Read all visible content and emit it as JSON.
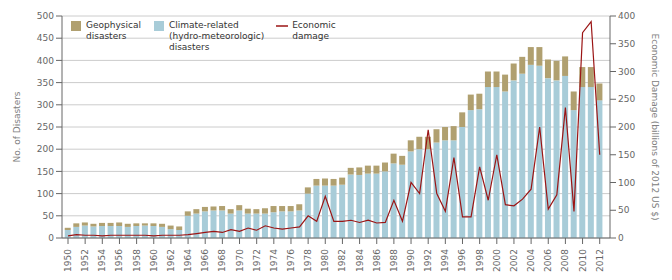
{
  "chart_data": {
    "type": "bar",
    "x": [
      1950,
      1951,
      1952,
      1953,
      1954,
      1955,
      1956,
      1957,
      1958,
      1959,
      1960,
      1961,
      1962,
      1963,
      1964,
      1965,
      1966,
      1967,
      1968,
      1969,
      1970,
      1971,
      1972,
      1973,
      1974,
      1975,
      1976,
      1977,
      1978,
      1979,
      1980,
      1981,
      1982,
      1983,
      1984,
      1985,
      1986,
      1987,
      1988,
      1989,
      1990,
      1991,
      1992,
      1993,
      1994,
      1995,
      1996,
      1997,
      1998,
      1999,
      2000,
      2001,
      2002,
      2003,
      2004,
      2005,
      2006,
      2007,
      2008,
      2009,
      2010,
      2011,
      2012
    ],
    "xlim": [
      1949.3,
      2013.2
    ],
    "xticks": [
      1950,
      1952,
      1954,
      1956,
      1958,
      1960,
      1962,
      1964,
      1966,
      1968,
      1970,
      1972,
      1974,
      1976,
      1978,
      1980,
      1982,
      1984,
      1986,
      1988,
      1990,
      1992,
      1994,
      1996,
      1998,
      2000,
      2002,
      2004,
      2006,
      2008,
      2010,
      2012
    ],
    "ylabel": "No. of Disasters",
    "y2label": "Economic Damage (billions of 2012 US $)",
    "ylim": [
      0,
      500
    ],
    "yticks": [
      0,
      50,
      100,
      150,
      200,
      250,
      300,
      350,
      400,
      450,
      500
    ],
    "y2lim": [
      0,
      400
    ],
    "y2ticks": [
      0,
      50,
      100,
      150,
      200,
      250,
      300,
      350,
      400
    ],
    "stacked": true,
    "grid": true,
    "legend": "upper left",
    "series": [
      {
        "name": "Geophysical\ndisasters",
        "type": "bar",
        "color": "#b0a070",
        "values": [
          5,
          8,
          7,
          6,
          7,
          7,
          8,
          7,
          6,
          5,
          6,
          7,
          8,
          8,
          10,
          10,
          10,
          9,
          10,
          10,
          12,
          11,
          10,
          12,
          14,
          12,
          12,
          14,
          14,
          15,
          16,
          15,
          16,
          15,
          17,
          18,
          18,
          20,
          22,
          20,
          25,
          28,
          28,
          30,
          30,
          32,
          33,
          35,
          35,
          35,
          35,
          38,
          38,
          38,
          40,
          42,
          42,
          44,
          44,
          42,
          45,
          45,
          38
        ]
      },
      {
        "name": "Climate-related\n(hydro-meteorologic)\ndisasters",
        "type": "bar",
        "color": "#a8ccd8",
        "values": [
          18,
          25,
          28,
          26,
          27,
          27,
          27,
          25,
          27,
          28,
          27,
          25,
          20,
          18,
          50,
          55,
          60,
          62,
          62,
          55,
          62,
          55,
          55,
          55,
          58,
          60,
          60,
          62,
          100,
          118,
          118,
          118,
          120,
          143,
          142,
          145,
          145,
          150,
          168,
          165,
          195,
          200,
          200,
          215,
          220,
          220,
          250,
          288,
          290,
          340,
          340,
          330,
          355,
          370,
          390,
          388,
          360,
          355,
          365,
          288,
          340,
          340,
          310
        ]
      },
      {
        "name": "Economic\ndamage",
        "type": "line",
        "axis": "y2",
        "color": "#9b1515",
        "values": [
          4,
          6,
          5,
          5,
          4,
          5,
          5,
          5,
          5,
          5,
          4,
          5,
          5,
          5,
          6,
          8,
          10,
          12,
          10,
          15,
          12,
          18,
          14,
          22,
          18,
          16,
          18,
          20,
          40,
          30,
          75,
          30,
          30,
          32,
          28,
          32,
          27,
          28,
          68,
          30,
          100,
          80,
          195,
          80,
          48,
          145,
          38,
          38,
          128,
          68,
          150,
          60,
          58,
          70,
          88,
          200,
          52,
          78,
          235,
          48,
          370,
          390,
          150
        ]
      }
    ]
  }
}
